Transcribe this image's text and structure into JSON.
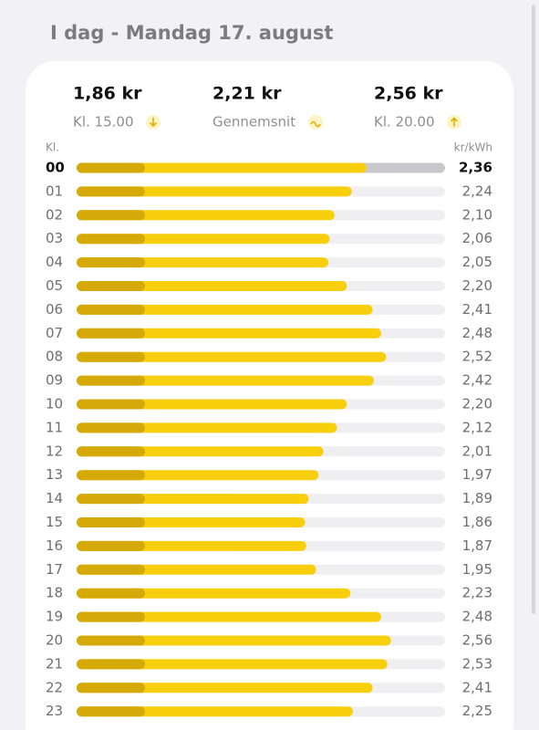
{
  "header": {
    "title": "I dag - Mandag 17. august"
  },
  "stats": [
    {
      "value": "1,86 kr",
      "label": "Kl. 15.00"
    },
    {
      "value": "2,21 kr",
      "label": "Gennemsnit"
    },
    {
      "value": "2,56 kr",
      "label": "Kl. 20.00"
    }
  ],
  "chart_data": {
    "type": "bar",
    "orientation": "horizontal",
    "category_label": "Kl.",
    "value_label": "kr/kWh",
    "categories": [
      "00",
      "01",
      "02",
      "03",
      "04",
      "05",
      "06",
      "07",
      "08",
      "09",
      "10",
      "11",
      "12",
      "13",
      "14",
      "15",
      "16",
      "17",
      "18",
      "19",
      "20",
      "21",
      "22",
      "23"
    ],
    "values": [
      2.36,
      2.24,
      2.1,
      2.06,
      2.05,
      2.2,
      2.41,
      2.48,
      2.52,
      2.42,
      2.2,
      2.12,
      2.01,
      1.97,
      1.89,
      1.86,
      1.87,
      1.95,
      2.23,
      2.48,
      2.56,
      2.53,
      2.41,
      2.25
    ],
    "value_labels": [
      "2,36",
      "2,24",
      "2,10",
      "2,06",
      "2,05",
      "2,20",
      "2,41",
      "2,48",
      "2,52",
      "2,42",
      "2,20",
      "2,12",
      "2,01",
      "1,97",
      "1,89",
      "1,86",
      "1,87",
      "1,95",
      "2,23",
      "2,48",
      "2,56",
      "2,53",
      "2,41",
      "2,25"
    ],
    "xlim": [
      0,
      3
    ],
    "color": "#f8cf0d",
    "highlight_index": 0
  }
}
